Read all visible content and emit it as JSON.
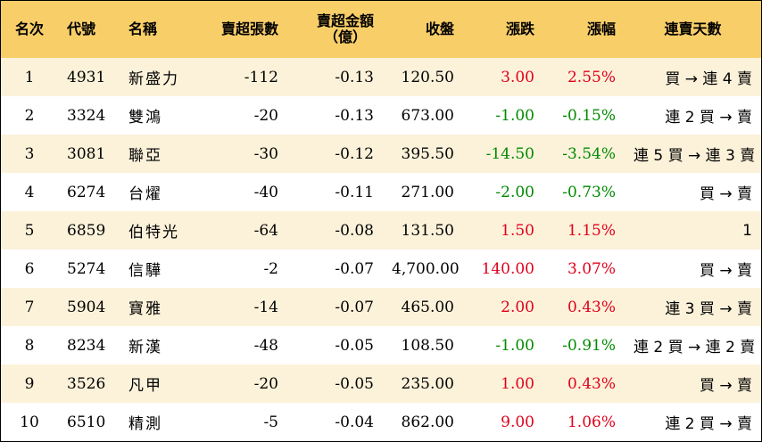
{
  "headers": {
    "rank": "名次",
    "code": "代號",
    "name": "名稱",
    "net_sell_lots": "賣超張數",
    "net_sell_amount_line1": "賣超金額",
    "net_sell_amount_line2": "（億）",
    "close": "收盤",
    "change": "漲跌",
    "pct": "漲幅",
    "streak": "連賣天數"
  },
  "colors": {
    "header_bg": "#f8ce69",
    "row_alt_bg": "#fcf2da",
    "up": "#e0001b",
    "down": "#008a00"
  },
  "rows": [
    {
      "rank": "1",
      "code": "4931",
      "name": "新盛力",
      "lots": "-112",
      "amount": "-0.13",
      "close": "120.50",
      "change": "3.00",
      "pct": "2.55%",
      "dir": "up",
      "streak": "買 → 連 4 賣"
    },
    {
      "rank": "2",
      "code": "3324",
      "name": "雙鴻",
      "lots": "-20",
      "amount": "-0.13",
      "close": "673.00",
      "change": "-1.00",
      "pct": "-0.15%",
      "dir": "down",
      "streak": "連 2 買 → 賣"
    },
    {
      "rank": "3",
      "code": "3081",
      "name": "聯亞",
      "lots": "-30",
      "amount": "-0.12",
      "close": "395.50",
      "change": "-14.50",
      "pct": "-3.54%",
      "dir": "down",
      "streak": "連 5 買 → 連 3 賣"
    },
    {
      "rank": "4",
      "code": "6274",
      "name": "台燿",
      "lots": "-40",
      "amount": "-0.11",
      "close": "271.00",
      "change": "-2.00",
      "pct": "-0.73%",
      "dir": "down",
      "streak": "買 → 賣"
    },
    {
      "rank": "5",
      "code": "6859",
      "name": "伯特光",
      "lots": "-64",
      "amount": "-0.08",
      "close": "131.50",
      "change": "1.50",
      "pct": "1.15%",
      "dir": "up",
      "streak": "1"
    },
    {
      "rank": "6",
      "code": "5274",
      "name": "信驊",
      "lots": "-2",
      "amount": "-0.07",
      "close": "4,700.00",
      "change": "140.00",
      "pct": "3.07%",
      "dir": "up",
      "streak": "買 → 賣"
    },
    {
      "rank": "7",
      "code": "5904",
      "name": "寶雅",
      "lots": "-14",
      "amount": "-0.07",
      "close": "465.00",
      "change": "2.00",
      "pct": "0.43%",
      "dir": "up",
      "streak": "連 3 買 → 賣"
    },
    {
      "rank": "8",
      "code": "8234",
      "name": "新漢",
      "lots": "-48",
      "amount": "-0.05",
      "close": "108.50",
      "change": "-1.00",
      "pct": "-0.91%",
      "dir": "down",
      "streak": "連 2 買 → 連 2 賣"
    },
    {
      "rank": "9",
      "code": "3526",
      "name": "凡甲",
      "lots": "-20",
      "amount": "-0.05",
      "close": "235.00",
      "change": "1.00",
      "pct": "0.43%",
      "dir": "up",
      "streak": "買 → 賣"
    },
    {
      "rank": "10",
      "code": "6510",
      "name": "精測",
      "lots": "-5",
      "amount": "-0.04",
      "close": "862.00",
      "change": "9.00",
      "pct": "1.06%",
      "dir": "up",
      "streak": "連 2 買 → 賣"
    }
  ]
}
